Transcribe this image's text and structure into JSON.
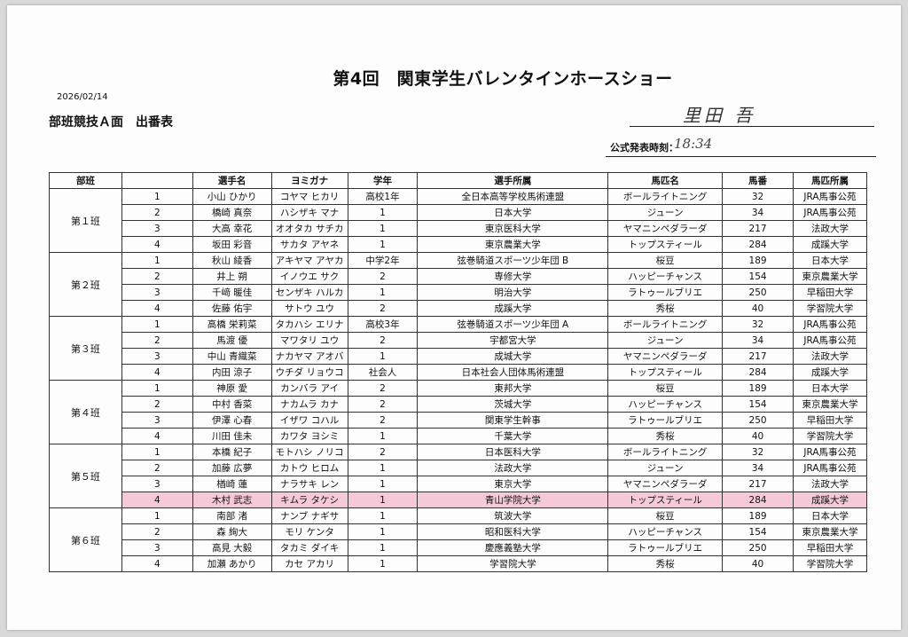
{
  "title": "第4回　関東学生バレンタインホースショー",
  "date": "2026/02/14",
  "subtitle": "部班競技Ａ面　出番表",
  "signature": "里田 吾",
  "announce": {
    "label": "公式発表時刻：",
    "time": "18:34"
  },
  "highlight_color": "#f6c9d8",
  "columns": [
    "部班",
    "",
    "選手名",
    "ヨミガナ",
    "学年",
    "選手所属",
    "馬匹名",
    "馬番",
    "馬匹所属"
  ],
  "groups": [
    {
      "label": "第１班",
      "rows": [
        [
          "1",
          "小山 ひかり",
          "コヤマ ヒカリ",
          "高校1年",
          "全日本高等学校馬術連盟",
          "ボールライトニング",
          "32",
          "JRA馬事公苑"
        ],
        [
          "2",
          "橋崎 真奈",
          "ハシザキ マナ",
          "1",
          "日本大学",
          "ジューン",
          "34",
          "JRA馬事公苑"
        ],
        [
          "3",
          "大高 幸花",
          "オオタカ サチカ",
          "1",
          "東京医科大学",
          "ヤマニンペダラーダ",
          "217",
          "法政大学"
        ],
        [
          "4",
          "坂田 彩音",
          "サカタ アヤネ",
          "1",
          "東京農業大学",
          "トップスティール",
          "284",
          "成蹊大学"
        ]
      ]
    },
    {
      "label": "第２班",
      "rows": [
        [
          "1",
          "秋山 綾香",
          "アキヤマ アヤカ",
          "中学2年",
          "弦巻騎道スポーツ少年団 B",
          "桜豆",
          "189",
          "日本大学"
        ],
        [
          "2",
          "井上 朔",
          "イノウエ サク",
          "2",
          "専修大学",
          "ハッピーチャンス",
          "154",
          "東京農業大学"
        ],
        [
          "3",
          "千﨑 暖佳",
          "センザキ ハルカ",
          "1",
          "明治大学",
          "ラトゥールブリエ",
          "250",
          "早稲田大学"
        ],
        [
          "4",
          "佐藤 佑宇",
          "サトウ ユウ",
          "2",
          "成蹊大学",
          "秀桜",
          "40",
          "学習院大学"
        ]
      ]
    },
    {
      "label": "第３班",
      "rows": [
        [
          "1",
          "高橋 栄莉菜",
          "タカハシ エリナ",
          "高校3年",
          "弦巻騎道スポーツ少年団 A",
          "ボールライトニング",
          "32",
          "JRA馬事公苑"
        ],
        [
          "2",
          "馬渡 優",
          "マワタリ ユウ",
          "2",
          "宇都宮大学",
          "ジューン",
          "34",
          "JRA馬事公苑"
        ],
        [
          "3",
          "中山 青織菜",
          "ナカヤマ アオバ",
          "1",
          "成城大学",
          "ヤマニンペダラーダ",
          "217",
          "法政大学"
        ],
        [
          "4",
          "内田 涼子",
          "ウチダ リョウコ",
          "社会人",
          "日本社会人団体馬術連盟",
          "トップスティール",
          "284",
          "成蹊大学"
        ]
      ]
    },
    {
      "label": "第４班",
      "rows": [
        [
          "1",
          "神原 愛",
          "カンバラ アイ",
          "2",
          "東邦大学",
          "桜豆",
          "189",
          "日本大学"
        ],
        [
          "2",
          "中村 香菜",
          "ナカムラ カナ",
          "2",
          "茨城大学",
          "ハッピーチャンス",
          "154",
          "東京農業大学"
        ],
        [
          "3",
          "伊澤 心春",
          "イザワ コハル",
          "2",
          "関東学生幹事",
          "ラトゥールブリエ",
          "250",
          "早稲田大学"
        ],
        [
          "4",
          "川田 佳未",
          "カワタ ヨシミ",
          "1",
          "千葉大学",
          "秀桜",
          "40",
          "学習院大学"
        ]
      ]
    },
    {
      "label": "第５班",
      "rows": [
        [
          "1",
          "本橋 紀子",
          "モトハシ ノリコ",
          "2",
          "日本医科大学",
          "ボールライトニング",
          "32",
          "JRA馬事公苑"
        ],
        [
          "2",
          "加藤 広夢",
          "カトウ ヒロム",
          "1",
          "法政大学",
          "ジューン",
          "34",
          "JRA馬事公苑"
        ],
        [
          "3",
          "楢崎 蓮",
          "ナラサキ レン",
          "1",
          "東京大学",
          "ヤマニンペダラーダ",
          "217",
          "法政大学"
        ],
        [
          "4",
          "木村 武志",
          "キムラ タケシ",
          "1",
          "青山学院大学",
          "トップスティール",
          "284",
          "成蹊大学"
        ]
      ],
      "highlight_row": 3
    },
    {
      "label": "第６班",
      "rows": [
        [
          "1",
          "南部 渚",
          "ナンブ ナギサ",
          "1",
          "筑波大学",
          "桜豆",
          "189",
          "日本大学"
        ],
        [
          "2",
          "森 絢大",
          "モリ ケンタ",
          "1",
          "昭和医科大学",
          "ハッピーチャンス",
          "154",
          "東京農業大学"
        ],
        [
          "3",
          "高見 大毅",
          "タカミ ダイキ",
          "1",
          "慶應義塾大学",
          "ラトゥールブリエ",
          "250",
          "早稲田大学"
        ],
        [
          "4",
          "加瀬 あかり",
          "カセ アカリ",
          "1",
          "学習院大学",
          "秀桜",
          "40",
          "学習院大学"
        ]
      ]
    }
  ]
}
